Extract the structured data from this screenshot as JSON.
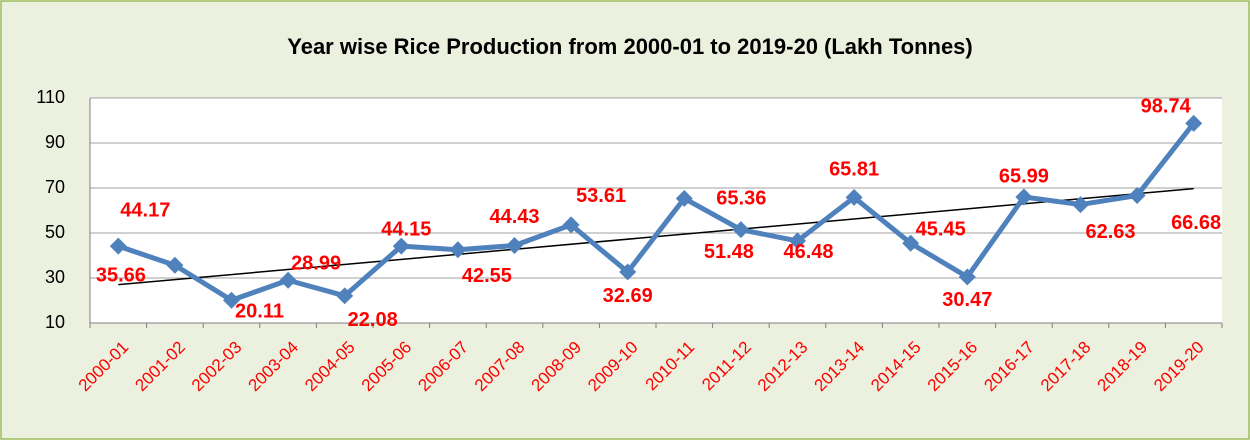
{
  "chart_data": {
    "type": "line",
    "title": "Year wise Rice Production from 2000-01 to 2019-20 (Lakh Tonnes)",
    "categories": [
      "2000-01",
      "2001-02",
      "2002-03",
      "2003-04",
      "2004-05",
      "2005-06",
      "2006-07",
      "2007-08",
      "2008-09",
      "2009-10",
      "2010-11",
      "2011-12",
      "2012-13",
      "2013-14",
      "2014-15",
      "2015-16",
      "2016-17",
      "2017-18",
      "2018-19",
      "2019-20"
    ],
    "series": [
      {
        "color": "#4f81bd",
        "values": [
          44.17,
          35.66,
          20.11,
          28.99,
          22.08,
          44.15,
          42.55,
          44.43,
          53.61,
          32.69,
          65.36,
          51.48,
          46.48,
          65.81,
          45.45,
          30.47,
          65.99,
          62.63,
          66.68,
          98.74
        ]
      }
    ],
    "ylim": [
      10,
      110
    ],
    "yticks": [
      10,
      30,
      50,
      70,
      90,
      110
    ],
    "grid": true,
    "trendline": true,
    "label_color": "#ff0000"
  }
}
